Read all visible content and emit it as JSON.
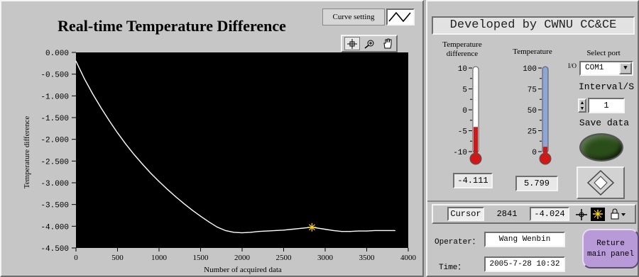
{
  "chart_panel": {
    "title": "Real-time Temperature Difference",
    "curve_setting_label": "Curve setting",
    "tools": [
      {
        "icon": "crosshair-tool-icon"
      },
      {
        "icon": "zoom-tool-icon"
      },
      {
        "icon": "pan-hand-tool-icon"
      }
    ]
  },
  "chart_data": {
    "type": "line",
    "title": "Real-time Temperature Difference",
    "xlabel": "Number of acquired data",
    "ylabel": "Temperature difference",
    "xlim": [
      0,
      4000
    ],
    "ylim": [
      -4.5,
      0
    ],
    "x_ticks": [
      "0",
      "500",
      "1000",
      "1500",
      "2000",
      "2500",
      "3000",
      "3500",
      "4000"
    ],
    "y_ticks": [
      "0.000",
      "-0.500",
      "-1.000",
      "-1.500",
      "-2.000",
      "-2.500",
      "-3.000",
      "-3.500",
      "-4.000",
      "-4.500"
    ],
    "grid": false,
    "background": "#000000",
    "line_color": "#ffffff",
    "series": [
      {
        "x": [
          0,
          100,
          200,
          300,
          400,
          500,
          600,
          700,
          800,
          900,
          1000,
          1100,
          1200,
          1300,
          1400,
          1500,
          1600,
          1700,
          1800,
          1900,
          2000,
          2100,
          2200,
          2300,
          2400,
          2500,
          2600,
          2700,
          2800,
          2841,
          2900,
          3000,
          3100,
          3200,
          3300,
          3400,
          3500,
          3600,
          3700,
          3841
        ],
        "y": [
          -0.2,
          -0.6,
          -0.95,
          -1.27,
          -1.57,
          -1.85,
          -2.11,
          -2.35,
          -2.57,
          -2.78,
          -2.97,
          -3.15,
          -3.32,
          -3.48,
          -3.63,
          -3.77,
          -3.9,
          -4.02,
          -4.1,
          -4.14,
          -4.15,
          -4.14,
          -4.12,
          -4.11,
          -4.1,
          -4.09,
          -4.07,
          -4.05,
          -4.03,
          -4.024,
          -4.04,
          -4.07,
          -4.1,
          -4.12,
          -4.12,
          -4.11,
          -4.11,
          -4.1,
          -4.1,
          -4.1
        ]
      }
    ],
    "cursor": {
      "x": 2841,
      "y": -4.024,
      "color": "#ffd400"
    }
  },
  "side_panel": {
    "header": "Developed by CWNU CC&CE",
    "temp_diff_label_line1": "Temperature",
    "temp_diff_label_line2": "difference",
    "temperature_label": "Temperature",
    "select_port_label": "Select port",
    "port_value": "COM1",
    "port_prefix": "I/O",
    "interval_label": "Interval/S",
    "interval_value": "1",
    "save_data_label": "Save data",
    "temp_diff_scale": [
      "10",
      "5",
      "0",
      "-5",
      "-10"
    ],
    "temperature_scale": [
      "100",
      "75",
      "50",
      "25",
      "0"
    ],
    "temp_diff_value": "-4.111",
    "temp_diff_level": -4.111,
    "temp_diff_range": [
      -10,
      10
    ],
    "temperature_value": "5.799",
    "temperature_level": 5.799,
    "temperature_range": [
      0,
      100
    ],
    "cursor_label": "Cursor",
    "cursor_x": "2841",
    "cursor_y": "-4.024",
    "operator_label": "Operater：",
    "operator_value": "Wang Wenbin",
    "time_label": "Time：",
    "time_value": "2005-7-28 10:32",
    "return_label_line1": "Reture",
    "return_label_line2": "main panel",
    "led_color": "#2b4d1a",
    "return_button_color": "#b99ad9",
    "mercury_color": "#d01818",
    "tube_color": "#8ea6d6"
  }
}
